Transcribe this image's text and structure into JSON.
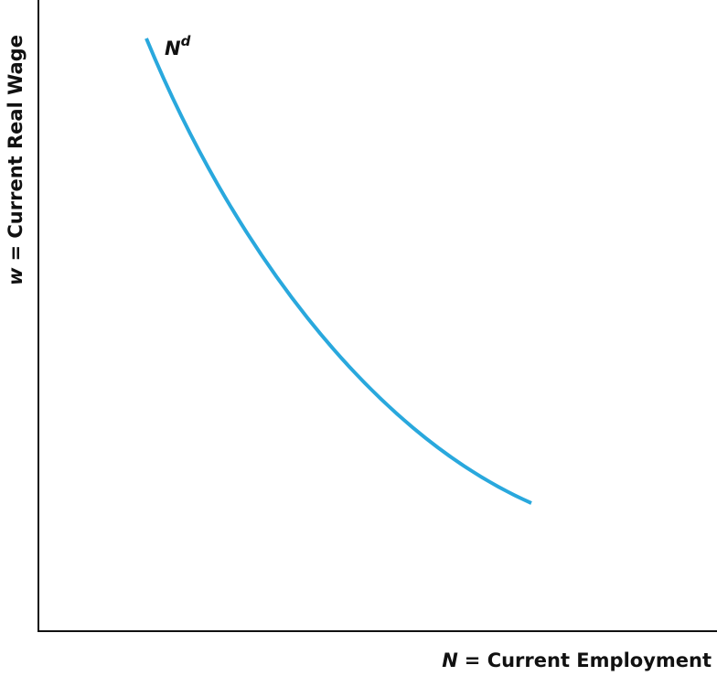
{
  "axes": {
    "y_label": {
      "variable": "w",
      "text": "= Current Real Wage"
    },
    "x_label": {
      "variable": "N",
      "text": "= Current Employment"
    }
  },
  "curve": {
    "label": "N",
    "superscript": "d"
  }
}
